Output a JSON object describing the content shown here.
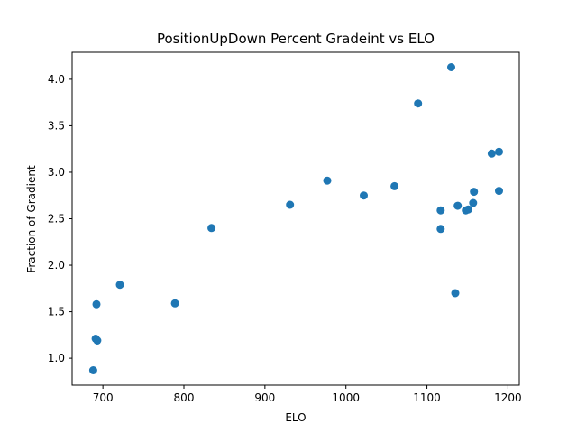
{
  "chart_data": {
    "type": "scatter",
    "title": "PositionUpDown Percent Gradeint vs ELO",
    "xlabel": "ELO",
    "ylabel": "Fraction of Gradient",
    "xlim": [
      662,
      1214
    ],
    "ylim": [
      0.71,
      4.29
    ],
    "xticks": [
      700,
      800,
      900,
      1000,
      1100,
      1200
    ],
    "yticks": [
      1.0,
      1.5,
      2.0,
      2.5,
      3.0,
      3.5,
      4.0
    ],
    "xtick_labels": [
      "700",
      "800",
      "900",
      "1000",
      "1100",
      "1200"
    ],
    "ytick_labels": [
      "1.0",
      "1.5",
      "2.0",
      "2.5",
      "3.0",
      "3.5",
      "4.0"
    ],
    "grid": false,
    "marker_color": "#1f77b4",
    "points": [
      {
        "x": 688,
        "y": 0.87
      },
      {
        "x": 691,
        "y": 1.21
      },
      {
        "x": 693,
        "y": 1.19
      },
      {
        "x": 692,
        "y": 1.58
      },
      {
        "x": 721,
        "y": 1.79
      },
      {
        "x": 789,
        "y": 1.59
      },
      {
        "x": 834,
        "y": 2.4
      },
      {
        "x": 931,
        "y": 2.65
      },
      {
        "x": 977,
        "y": 2.91
      },
      {
        "x": 1022,
        "y": 2.75
      },
      {
        "x": 1060,
        "y": 2.85
      },
      {
        "x": 1089,
        "y": 3.74
      },
      {
        "x": 1117,
        "y": 2.39
      },
      {
        "x": 1117,
        "y": 2.59
      },
      {
        "x": 1130,
        "y": 4.13
      },
      {
        "x": 1135,
        "y": 1.7
      },
      {
        "x": 1138,
        "y": 2.64
      },
      {
        "x": 1148,
        "y": 2.59
      },
      {
        "x": 1151,
        "y": 2.6
      },
      {
        "x": 1157,
        "y": 2.67
      },
      {
        "x": 1158,
        "y": 2.79
      },
      {
        "x": 1180,
        "y": 3.2
      },
      {
        "x": 1189,
        "y": 3.22
      },
      {
        "x": 1189,
        "y": 2.8
      }
    ]
  }
}
